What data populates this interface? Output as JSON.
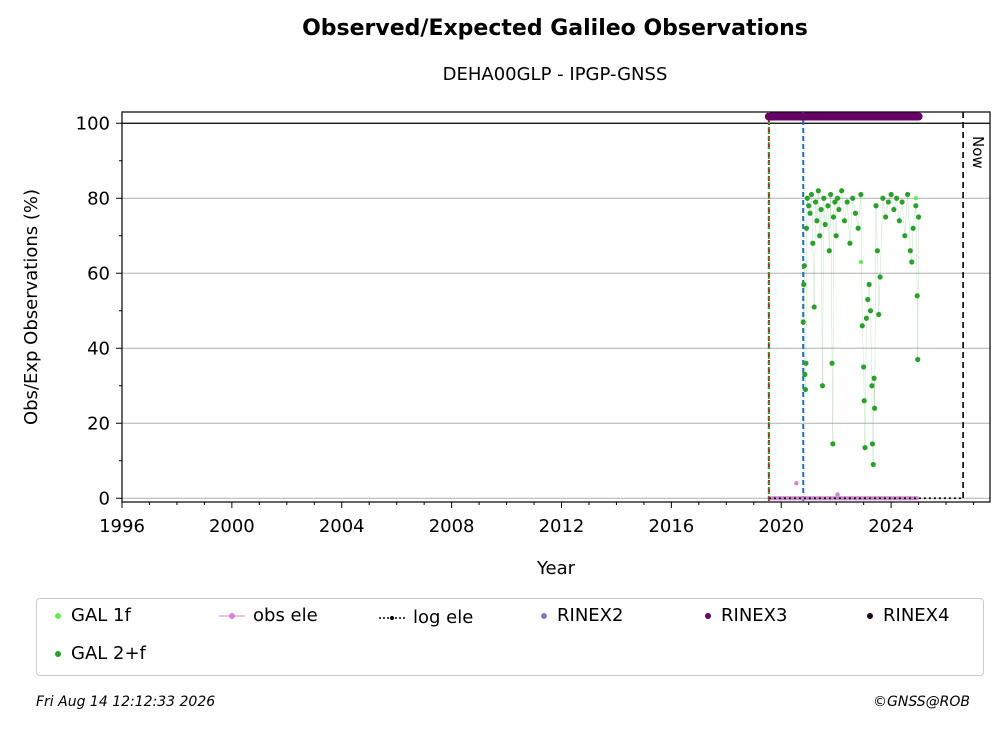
{
  "chart_data": {
    "type": "scatter",
    "title": "Observed/Expected Galileo Observations",
    "subtitle": "DEHA00GLP - IPGP-GNSS",
    "xlabel": "Year",
    "ylabel": "Obs/Exp Observations (%)",
    "xlim": [
      1996,
      2027.6
    ],
    "ylim": [
      -1,
      103
    ],
    "xticks": [
      1996,
      2000,
      2004,
      2008,
      2012,
      2016,
      2020,
      2024
    ],
    "yticks": [
      0,
      20,
      40,
      60,
      80,
      100
    ],
    "grid": "horizontal",
    "now_marker": {
      "x": 2026.62,
      "label": "Now"
    },
    "vlines": [
      {
        "x": 2019.55,
        "color": "#b22222",
        "style": "dashed"
      },
      {
        "x": 2019.55,
        "color": "#2ca02c",
        "style": "dotted"
      },
      {
        "x": 2020.8,
        "color": "#1f6fb5",
        "style": "dashed"
      }
    ],
    "series": [
      {
        "name": "GAL 1f",
        "color": "#66ee55",
        "points": [
          [
            2022.9,
            63
          ],
          [
            2023.6,
            59
          ],
          [
            2024.9,
            80
          ]
        ]
      },
      {
        "name": "GAL 2+f",
        "color": "#2ca02c",
        "points": [
          [
            2020.8,
            47
          ],
          [
            2020.82,
            57
          ],
          [
            2020.84,
            62
          ],
          [
            2020.86,
            33
          ],
          [
            2020.88,
            29
          ],
          [
            2020.9,
            36
          ],
          [
            2020.92,
            72
          ],
          [
            2020.95,
            80
          ],
          [
            2021.0,
            78
          ],
          [
            2021.05,
            76
          ],
          [
            2021.1,
            81
          ],
          [
            2021.15,
            68
          ],
          [
            2021.2,
            51
          ],
          [
            2021.25,
            79
          ],
          [
            2021.3,
            74
          ],
          [
            2021.35,
            82
          ],
          [
            2021.4,
            70
          ],
          [
            2021.45,
            77
          ],
          [
            2021.5,
            30
          ],
          [
            2021.55,
            80
          ],
          [
            2021.6,
            73
          ],
          [
            2021.7,
            78
          ],
          [
            2021.75,
            66
          ],
          [
            2021.8,
            81
          ],
          [
            2021.85,
            36
          ],
          [
            2021.88,
            14.5
          ],
          [
            2021.9,
            75
          ],
          [
            2021.95,
            79
          ],
          [
            2022.0,
            70
          ],
          [
            2022.05,
            80
          ],
          [
            2022.1,
            77
          ],
          [
            2022.2,
            82
          ],
          [
            2022.3,
            74
          ],
          [
            2022.4,
            79
          ],
          [
            2022.5,
            68
          ],
          [
            2022.6,
            80
          ],
          [
            2022.7,
            76
          ],
          [
            2022.8,
            72
          ],
          [
            2022.9,
            81
          ],
          [
            2022.95,
            46
          ],
          [
            2023.0,
            35
          ],
          [
            2023.02,
            26
          ],
          [
            2023.05,
            13.5
          ],
          [
            2023.1,
            48
          ],
          [
            2023.15,
            53
          ],
          [
            2023.2,
            57
          ],
          [
            2023.25,
            50
          ],
          [
            2023.3,
            30
          ],
          [
            2023.32,
            14.5
          ],
          [
            2023.35,
            9
          ],
          [
            2023.38,
            32
          ],
          [
            2023.4,
            24
          ],
          [
            2023.45,
            78
          ],
          [
            2023.5,
            66
          ],
          [
            2023.55,
            49
          ],
          [
            2023.6,
            59
          ],
          [
            2023.7,
            80
          ],
          [
            2023.8,
            75
          ],
          [
            2023.9,
            79
          ],
          [
            2024.0,
            81
          ],
          [
            2024.1,
            77
          ],
          [
            2024.2,
            80
          ],
          [
            2024.3,
            74
          ],
          [
            2024.4,
            79
          ],
          [
            2024.5,
            70
          ],
          [
            2024.6,
            81
          ],
          [
            2024.7,
            66
          ],
          [
            2024.75,
            63
          ],
          [
            2024.8,
            72
          ],
          [
            2024.9,
            78
          ],
          [
            2024.95,
            54
          ],
          [
            2024.97,
            37
          ],
          [
            2025.0,
            75
          ]
        ]
      },
      {
        "name": "obs ele",
        "color": "#cc88cc",
        "points": [
          [
            2020.55,
            4
          ],
          [
            2022.05,
            1
          ]
        ]
      },
      {
        "name": "log ele",
        "color": "#000000",
        "points": [
          [
            2019.55,
            0
          ],
          [
            2026.62,
            0
          ]
        ]
      },
      {
        "name": "RINEX2",
        "color": "#8877bb",
        "points": []
      },
      {
        "name": "RINEX3",
        "color": "#660066",
        "points": [
          [
            2019.55,
            101.8
          ],
          [
            2025.0,
            101.8
          ]
        ]
      },
      {
        "name": "RINEX4",
        "color": "#1a0522",
        "points": []
      }
    ]
  },
  "legend": {
    "items": [
      {
        "label": "GAL 1f",
        "color": "#66ee55",
        "marker": "dot"
      },
      {
        "label": "obs ele",
        "color": "#cc88cc",
        "marker": "line-dot"
      },
      {
        "label": "log ele",
        "color": "#000000",
        "marker": "dotted-line"
      },
      {
        "label": "RINEX2",
        "color": "#8877bb",
        "marker": "dot"
      },
      {
        "label": "RINEX3",
        "color": "#660066",
        "marker": "dot"
      },
      {
        "label": "RINEX4",
        "color": "#1a0522",
        "marker": "dot"
      },
      {
        "label": "GAL 2+f",
        "color": "#2ca02c",
        "marker": "dot"
      }
    ]
  },
  "footer": {
    "timestamp": "Fri Aug 14 12:12:33 2026",
    "credit": "©GNSS@ROB"
  }
}
